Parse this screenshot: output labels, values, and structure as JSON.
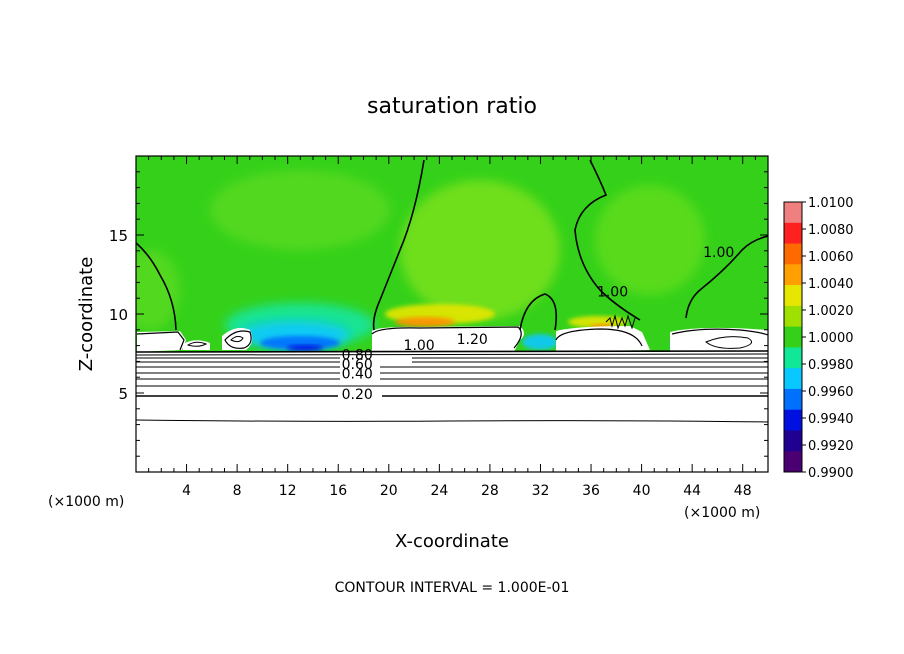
{
  "chart_data": {
    "type": "heatmap",
    "title": "saturation ratio",
    "xlabel": "X-coordinate",
    "ylabel": "Z-coordinate",
    "x_unit_left": "(×1000 m)",
    "x_unit_right": "(×1000 m)",
    "xlim": [
      0,
      50
    ],
    "ylim": [
      0,
      20
    ],
    "x_ticks": [
      "4",
      "8",
      "12",
      "16",
      "20",
      "24",
      "28",
      "32",
      "36",
      "40",
      "44",
      "48"
    ],
    "y_ticks": [
      "5",
      "10",
      "15"
    ],
    "colorbar": {
      "min": 0.99,
      "max": 1.01,
      "tick_labels": [
        "1.0100",
        "1.0080",
        "1.0060",
        "1.0040",
        "1.0020",
        "1.0000",
        "0.9980",
        "0.9960",
        "0.9940",
        "0.9920",
        "0.9900"
      ],
      "colors": [
        "#f08080",
        "#ff2020",
        "#ff6a00",
        "#ffa000",
        "#e6e600",
        "#a0e000",
        "#35d11a",
        "#10e898",
        "#08c8ff",
        "#0070ff",
        "#0010e0",
        "#200090",
        "#4a0070"
      ]
    },
    "contour_labels": [
      {
        "text": "1.00",
        "x": 46.1,
        "y": 13.8
      },
      {
        "text": "1.00",
        "x": 37.7,
        "y": 11.3
      },
      {
        "text": "1.00",
        "x": 22.4,
        "y": 7.9
      },
      {
        "text": "1.20",
        "x": 26.6,
        "y": 8.3
      },
      {
        "text": "0.80",
        "x": 17.5,
        "y": 7.3
      },
      {
        "text": "0.60",
        "x": 17.5,
        "y": 6.7
      },
      {
        "text": "0.40",
        "x": 17.5,
        "y": 6.1
      },
      {
        "text": "0.20",
        "x": 17.5,
        "y": 4.8
      }
    ],
    "contour_interval_text": "CONTOUR INTERVAL = 1.000E-01"
  }
}
